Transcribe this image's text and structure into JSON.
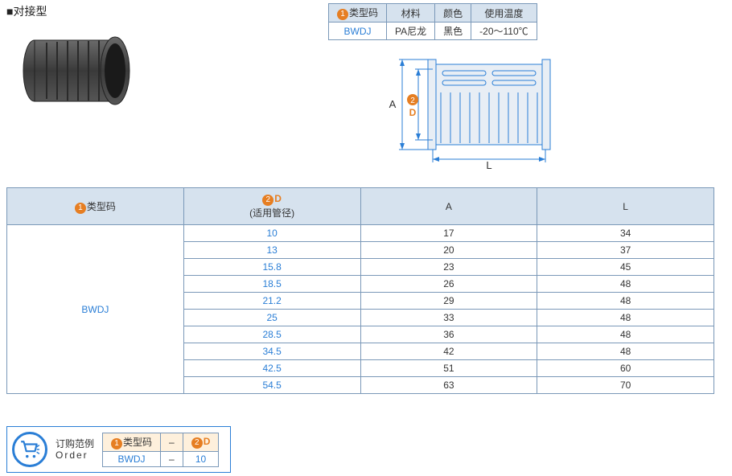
{
  "header": {
    "title_prefix": "■",
    "title": "对接型"
  },
  "spec_table": {
    "headers": {
      "type_code_prefix_badge": "1",
      "type_code": "类型码",
      "material": "材料",
      "color": "颜色",
      "temp": "使用温度"
    },
    "row": {
      "type_code": "BWDJ",
      "material": "PA尼龙",
      "color": "黑色",
      "temp": "-20～110℃"
    }
  },
  "diagram": {
    "label_A": "A",
    "label_D_badge": "2",
    "label_D": "D",
    "label_L": "L",
    "stroke": "#2a7ed6",
    "body_fill": "#e8eef5"
  },
  "main_table": {
    "headers": {
      "col1_badge": "1",
      "col1": "类型码",
      "col2_badge": "2",
      "col2": "D",
      "col2_sub": "(适用管径)",
      "col3": "A",
      "col4": "L"
    },
    "type_code": "BWDJ",
    "rows": [
      {
        "d": "10",
        "a": "17",
        "l": "34"
      },
      {
        "d": "13",
        "a": "20",
        "l": "37"
      },
      {
        "d": "15.8",
        "a": "23",
        "l": "45"
      },
      {
        "d": "18.5",
        "a": "26",
        "l": "48"
      },
      {
        "d": "21.2",
        "a": "29",
        "l": "48"
      },
      {
        "d": "25",
        "a": "33",
        "l": "48"
      },
      {
        "d": "28.5",
        "a": "36",
        "l": "48"
      },
      {
        "d": "34.5",
        "a": "42",
        "l": "48"
      },
      {
        "d": "42.5",
        "a": "51",
        "l": "60"
      },
      {
        "d": "54.5",
        "a": "63",
        "l": "70"
      }
    ]
  },
  "order": {
    "label_cn": "订购范例",
    "label_en": "Order",
    "col1_badge": "1",
    "col1": "类型码",
    "sep": "–",
    "col2_badge": "2",
    "col2": "D",
    "val1": "BWDJ",
    "val2": "10"
  },
  "product_svg": {
    "body_fill": "#4a4a4a",
    "body_stroke": "#2a2a2a",
    "rib_stroke": "#2f2f2f"
  }
}
